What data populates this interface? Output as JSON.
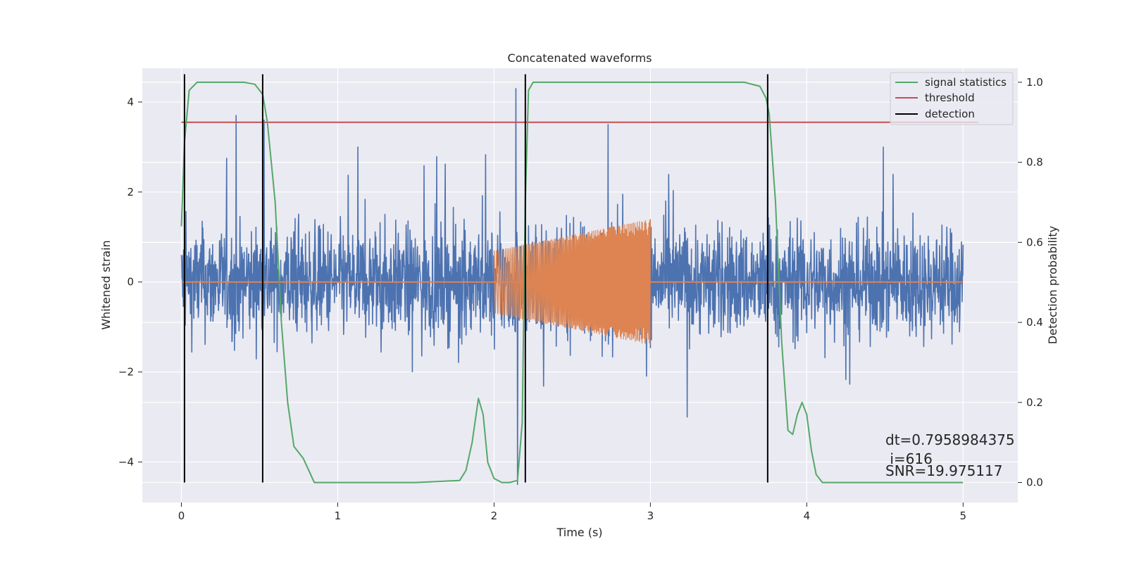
{
  "chart_data": {
    "type": "line",
    "title": "Concatenated waveforms",
    "xlabel": "Time (s)",
    "ylabel": "Whitened strain",
    "ylabel_right": "Detection probability",
    "xlim": [
      -0.25,
      5.35
    ],
    "ylim": [
      -4.9,
      4.75
    ],
    "ylim_right": [
      -0.05,
      1.035
    ],
    "x_ticks": [
      0,
      1,
      2,
      3,
      4,
      5
    ],
    "x_tick_labels": [
      "0",
      "1",
      "2",
      "3",
      "4",
      "5"
    ],
    "y_ticks": [
      -4,
      -2,
      0,
      2,
      4
    ],
    "y_tick_labels": [
      "−4",
      "−2",
      "0",
      "2",
      "4"
    ],
    "y_right_ticks": [
      0.0,
      0.2,
      0.4,
      0.6,
      0.8,
      1.0
    ],
    "y_right_tick_labels": [
      "0.0",
      "0.2",
      "0.4",
      "0.6",
      "0.8",
      "1.0"
    ],
    "grid": true,
    "legend_position": "top-right",
    "legend": [
      {
        "label": "signal statistics",
        "color": "#55a868"
      },
      {
        "label": "threshold",
        "color": "#c44e52"
      },
      {
        "label": "detection",
        "color": "#000000"
      }
    ],
    "colors": {
      "strain": "#4c72b0",
      "template": "#dd8452",
      "signal_statistics": "#55a868",
      "threshold": "#c44e52",
      "detection": "#000000",
      "plot_background": "#eaeaf2",
      "grid": "#ffffff"
    },
    "strain": {
      "x_range": [
        0,
        5
      ],
      "typical_band": [
        -1.3,
        1.4
      ],
      "notable_peaks": [
        {
          "x": 0.35,
          "y": 3.7
        },
        {
          "x": 0.53,
          "y": 3.6
        },
        {
          "x": 2.14,
          "y": 4.3
        },
        {
          "x": 2.15,
          "y": -4.5
        },
        {
          "x": 2.73,
          "y": 3.5
        },
        {
          "x": 3.75,
          "y": 3.5
        }
      ]
    },
    "template": {
      "x_range": [
        2,
        3
      ],
      "amplitude_start": 0.7,
      "amplitude_end": 1.4,
      "baseline": 0
    },
    "signal_statistics": {
      "x": [
        0,
        0.02,
        0.05,
        0.1,
        0.2,
        0.3,
        0.4,
        0.47,
        0.52,
        0.55,
        0.6,
        0.62,
        0.64,
        0.68,
        0.72,
        0.78,
        0.85,
        1.0,
        1.5,
        1.78,
        1.82,
        1.86,
        1.9,
        1.93,
        1.96,
        2.0,
        2.05,
        2.1,
        2.15,
        2.18,
        2.2,
        2.22,
        2.25,
        3.0,
        3.6,
        3.7,
        3.74,
        3.76,
        3.8,
        3.84,
        3.88,
        3.91,
        3.94,
        3.97,
        4.0,
        4.03,
        4.06,
        4.1,
        4.2,
        5.0
      ],
      "y": [
        0.64,
        0.85,
        0.98,
        1.0,
        1.0,
        1.0,
        1.0,
        0.995,
        0.97,
        0.9,
        0.7,
        0.55,
        0.4,
        0.2,
        0.09,
        0.06,
        0.0,
        0.0,
        0.0,
        0.005,
        0.03,
        0.1,
        0.21,
        0.17,
        0.05,
        0.01,
        0.0,
        0.0,
        0.005,
        0.15,
        0.7,
        0.98,
        1.0,
        1.0,
        1.0,
        0.99,
        0.96,
        0.92,
        0.7,
        0.35,
        0.13,
        0.12,
        0.17,
        0.2,
        0.17,
        0.08,
        0.02,
        0.0,
        0.0,
        0.0
      ]
    },
    "threshold": {
      "y": 0.9,
      "x_range": [
        0,
        5.1
      ]
    },
    "detections_x": [
      0.02,
      0.52,
      2.2,
      3.75
    ]
  },
  "annotations": {
    "dt": "dt=0.7958984375",
    "i": " i=616",
    "snr": "SNR=19.975117"
  }
}
